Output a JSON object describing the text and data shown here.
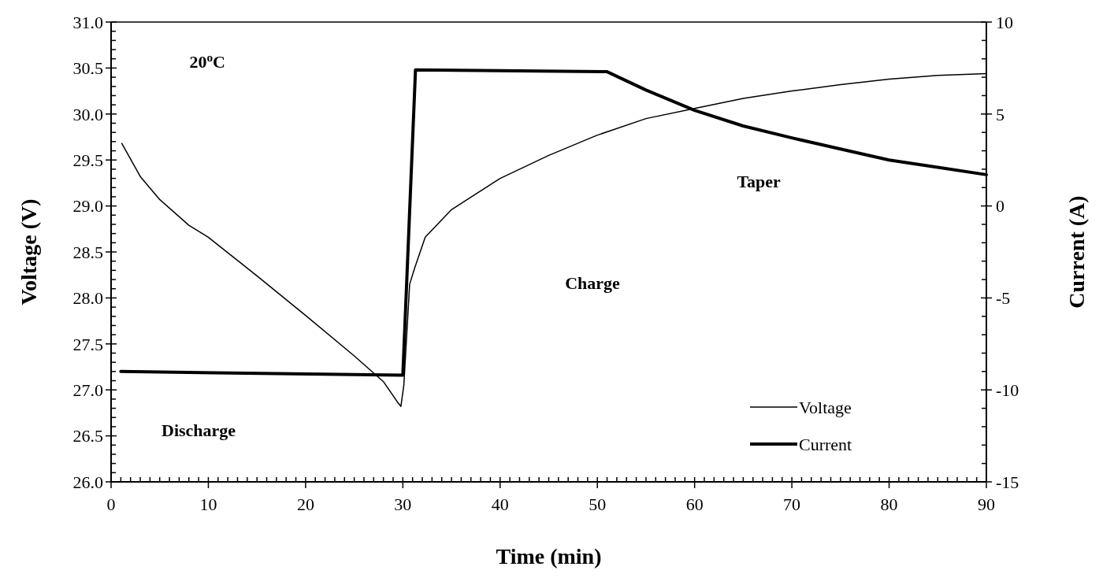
{
  "chart_data": {
    "type": "line",
    "xlabel": "Time (min)",
    "ylabel": "Voltage (V)",
    "y2label": "Current (A)",
    "xlim": [
      0,
      90
    ],
    "xticks": [
      0,
      10,
      20,
      30,
      40,
      50,
      60,
      70,
      80,
      90
    ],
    "ylim": [
      26,
      31
    ],
    "yticks": [
      {
        "value": 26,
        "label": "26.0"
      },
      {
        "value": 26.5,
        "label": "26.5"
      },
      {
        "value": 27,
        "label": "27.0"
      },
      {
        "value": 27.5,
        "label": "27.5"
      },
      {
        "value": 28,
        "label": "28.0"
      },
      {
        "value": 28.5,
        "label": "28.5"
      },
      {
        "value": 29,
        "label": "29.0"
      },
      {
        "value": 29.5,
        "label": "29.5"
      },
      {
        "value": 30,
        "label": "30.0"
      },
      {
        "value": 30.5,
        "label": "30.5"
      },
      {
        "value": 31,
        "label": "31.0"
      }
    ],
    "y2lim": [
      -15,
      10
    ],
    "y2ticks": [
      -15,
      -10,
      -5,
      0,
      5,
      10
    ],
    "legend": "bottom right",
    "grid": false,
    "marker": "none",
    "line_style": "solid",
    "annotations": [
      "20$^{o}$C",
      "Discharge",
      "Charge",
      "Taper"
    ],
    "series": [
      {
        "name": "Voltage",
        "color": "#000000",
        "x": [
          1.1,
          3,
          5,
          8,
          10,
          15,
          20,
          25,
          28,
          29.5,
          29.8,
          30.1,
          30.7,
          31.2,
          32.3,
          35,
          40,
          45,
          50,
          55,
          60,
          65,
          70,
          75,
          80,
          85,
          90
        ],
        "values": [
          29.68,
          29.32,
          29.07,
          28.79,
          28.66,
          28.24,
          27.81,
          27.37,
          27.09,
          26.86,
          26.82,
          27.05,
          28.15,
          28.32,
          28.66,
          28.96,
          29.3,
          29.55,
          29.77,
          29.95,
          30.06,
          30.17,
          30.25,
          30.32,
          30.38,
          30.42,
          30.44
        ]
      },
      {
        "name": "Current",
        "color": "#000000",
        "axis": "y2",
        "x": [
          1,
          30,
          31.3,
          51,
          55,
          60,
          65,
          70,
          75,
          80,
          85,
          90
        ],
        "values": [
          -9.0,
          -9.2,
          7.4,
          7.3,
          6.3,
          5.2,
          4.35,
          3.7,
          3.1,
          2.5,
          2.1,
          1.7
        ]
      }
    ]
  }
}
